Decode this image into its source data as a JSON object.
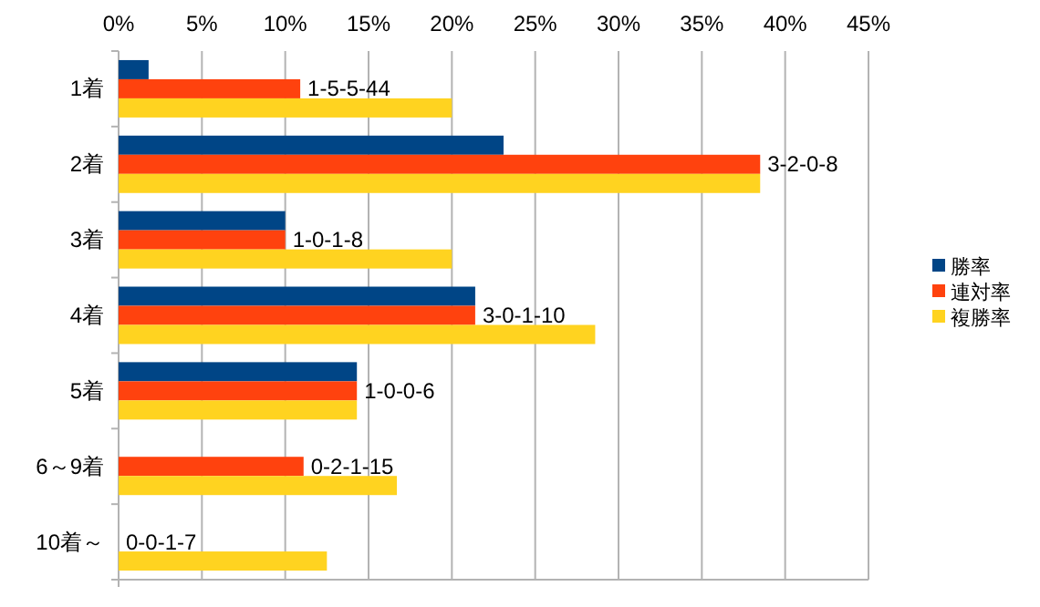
{
  "chart_data": {
    "type": "bar",
    "orientation": "horizontal",
    "categories": [
      "1着",
      "2着",
      "3着",
      "4着",
      "5着",
      "6～9着",
      "10着～"
    ],
    "series": [
      {
        "name": "勝率",
        "color": "#004586",
        "values": [
          1.8,
          23.1,
          10,
          21.4,
          14.3,
          0,
          0
        ]
      },
      {
        "name": "連対率",
        "color": "#ff420e",
        "values": [
          10.9,
          38.5,
          10,
          21.4,
          14.3,
          11.1,
          0
        ]
      },
      {
        "name": "複勝率",
        "color": "#ffd320",
        "values": [
          20,
          38.5,
          20,
          28.6,
          14.3,
          16.7,
          12.5
        ]
      }
    ],
    "xlim": [
      0,
      45
    ],
    "xticks": [
      {
        "value": 0,
        "label": "0%"
      },
      {
        "value": 5,
        "label": "5%"
      },
      {
        "value": 10,
        "label": "10%"
      },
      {
        "value": 15,
        "label": "15%"
      },
      {
        "value": 20,
        "label": "20%"
      },
      {
        "value": 25,
        "label": "25%"
      },
      {
        "value": 30,
        "label": "30%"
      },
      {
        "value": 35,
        "label": "35%"
      },
      {
        "value": 40,
        "label": "40%"
      },
      {
        "value": 45,
        "label": "45%"
      }
    ],
    "grid": "x",
    "legend": "right",
    "annotations": [
      {
        "text": "1-5-5-44",
        "x": 10.9,
        "y": "1着"
      },
      {
        "text": "3-2-0-8",
        "x": 38.5,
        "y": "2着"
      },
      {
        "text": "1-0-1-8",
        "x": 10,
        "y": "3着"
      },
      {
        "text": "3-0-1-10",
        "x": 21.4,
        "y": "4着"
      },
      {
        "text": "1-0-0-6",
        "x": 14.3,
        "y": "5着"
      },
      {
        "text": "0-2-1-15",
        "x": 11.1,
        "y": "6～9着"
      },
      {
        "text": "0-0-1-7",
        "x": 0,
        "y": "10着～"
      }
    ]
  }
}
